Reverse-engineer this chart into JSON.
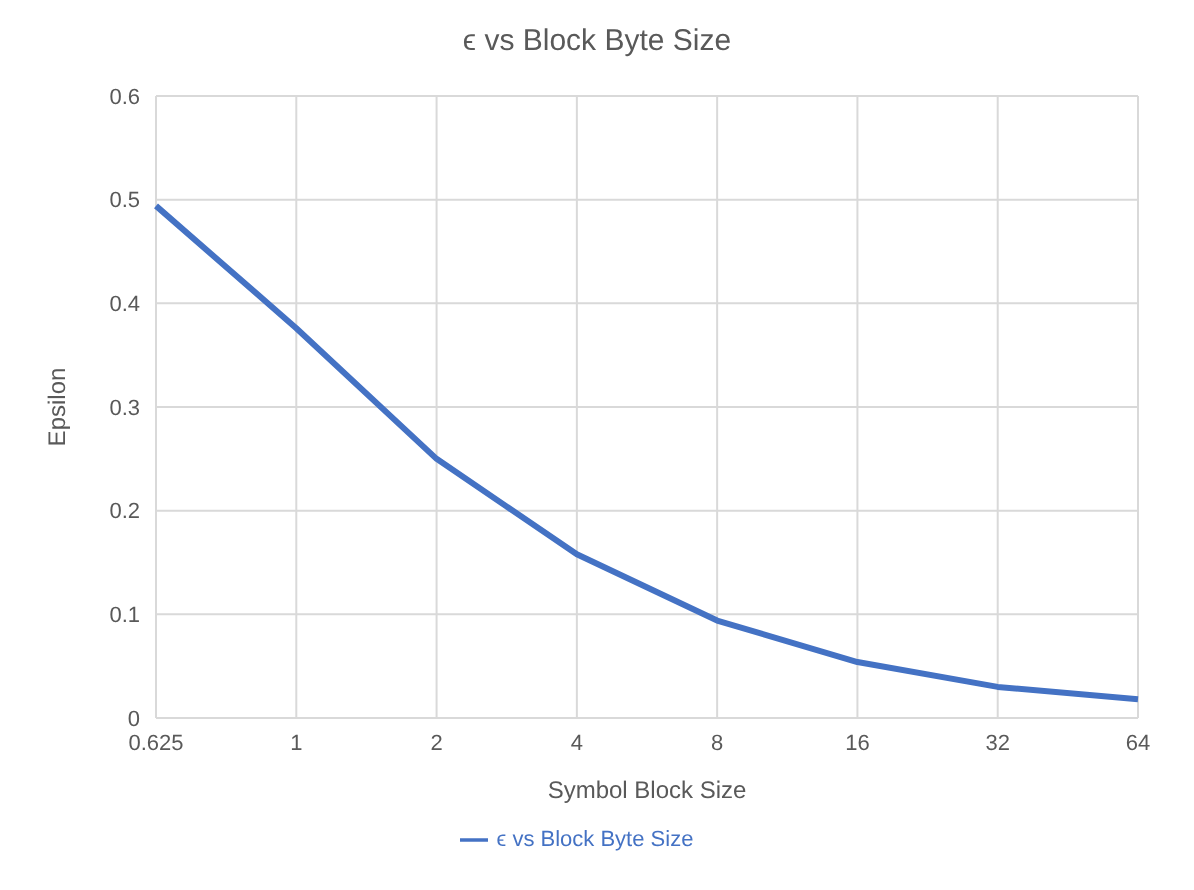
{
  "chart_data": {
    "type": "line",
    "title": "ϵ vs Block Byte Size",
    "xlabel": "Symbol Block Size",
    "ylabel": "Epsilon",
    "categories": [
      "0.625",
      "1",
      "2",
      "4",
      "8",
      "16",
      "32",
      "64"
    ],
    "series": [
      {
        "name": "ϵ vs Block Byte Size",
        "color": "#4472c4",
        "values": [
          0.494,
          0.376,
          0.25,
          0.158,
          0.094,
          0.054,
          0.03,
          0.018
        ]
      }
    ],
    "ylim": [
      0,
      0.6
    ],
    "yticks": [
      0,
      0.1,
      0.2,
      0.3,
      0.4,
      0.5,
      0.6
    ],
    "grid": true,
    "legend": "bottom",
    "marker": "none",
    "line_style": "solid"
  }
}
